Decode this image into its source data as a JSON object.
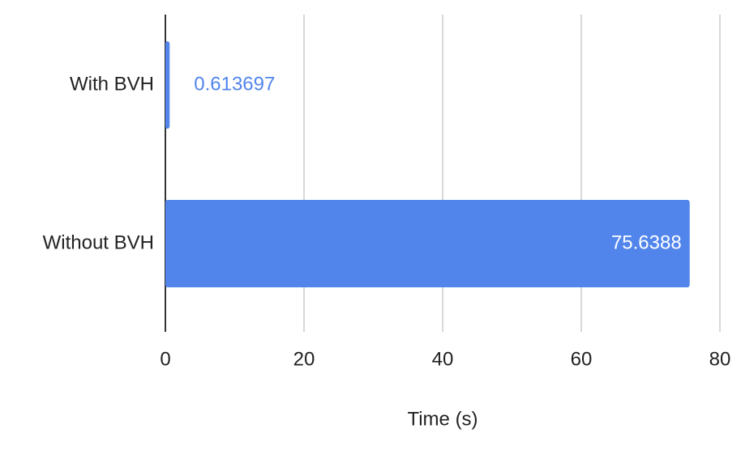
{
  "chart_data": {
    "type": "bar",
    "orientation": "horizontal",
    "x_label": "Time (s)",
    "categories": [
      "With BVH",
      "Without BVH"
    ],
    "values": [
      0.613697,
      75.6388
    ],
    "color": "#5185ec",
    "xlim": [
      0,
      80
    ],
    "xticks": [
      0,
      20,
      40,
      60,
      80
    ],
    "grid": true
  }
}
